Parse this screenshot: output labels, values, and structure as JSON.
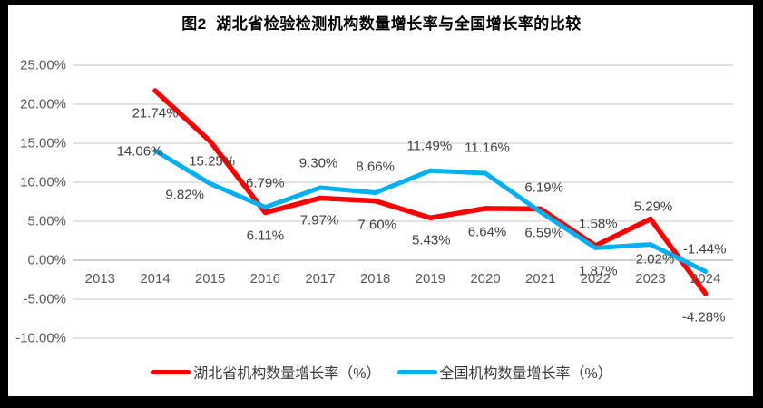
{
  "title": "图2  湖北省检验检测机构数量增长率与全国增长率的比较",
  "chart_data": {
    "type": "line",
    "title": "图2  湖北省检验检测机构数量增长率与全国增长率的比较",
    "categories": [
      "2013",
      "2014",
      "2015",
      "2016",
      "2017",
      "2018",
      "2019",
      "2020",
      "2021",
      "2022",
      "2023",
      "2024"
    ],
    "series": [
      {
        "name": "湖北省机构数量增长率（%）",
        "color": "#FF0000",
        "values": [
          null,
          21.74,
          15.25,
          6.11,
          7.97,
          7.6,
          5.43,
          6.64,
          6.59,
          1.87,
          5.29,
          -4.28
        ],
        "labels": [
          null,
          "21.74%",
          "15.25%",
          "6.11%",
          "7.97%",
          "7.60%",
          "5.43%",
          "6.64%",
          "6.59%",
          "1.87%",
          "5.29%",
          "-4.28%"
        ]
      },
      {
        "name": "全国机构数量增长率（%）",
        "color": "#00B0F0",
        "values": [
          null,
          14.06,
          9.82,
          6.79,
          9.3,
          8.66,
          11.49,
          11.16,
          6.19,
          1.58,
          2.02,
          -1.44
        ],
        "labels": [
          null,
          "14.06%",
          "9.82%",
          "6.79%",
          "9.30%",
          "8.66%",
          "11.49%",
          "11.16%",
          "6.19%",
          "1.58%",
          "2.02%",
          "-1.44%"
        ]
      }
    ],
    "ytick_labels": [
      "25.00%",
      "20.00%",
      "15.00%",
      "10.00%",
      "5.00%",
      "0.00%",
      "-5.00%",
      "-10.00%"
    ],
    "ytick_values": [
      25,
      20,
      15,
      10,
      5,
      0,
      -5,
      -10
    ],
    "ylim": [
      -10,
      25
    ],
    "xlabel": "",
    "ylabel": "",
    "grid": true,
    "gridline_color": "#D9D9D9",
    "axis_line_color": "#BFBFBF",
    "legend_position": "bottom"
  }
}
